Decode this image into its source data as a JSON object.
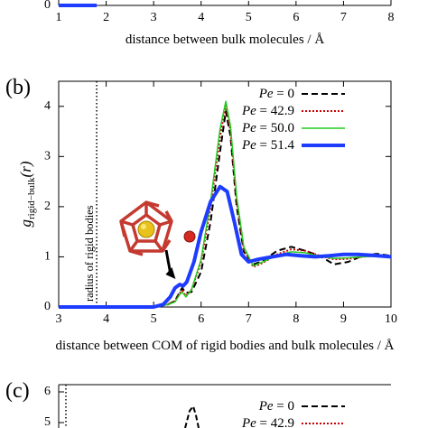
{
  "chart_data": [
    {
      "panel": "(a)",
      "type": "line",
      "xlabel": "distance between bulk molecules / Å",
      "xlim": [
        1,
        8
      ],
      "xticks": [
        "1",
        "2",
        "3",
        "4",
        "5",
        "6",
        "7",
        "8"
      ],
      "y_zero_label": "0",
      "series": [
        {
          "color": "#1e3cff",
          "x": [
            1.0,
            1.8
          ],
          "y": [
            0,
            0
          ]
        }
      ]
    },
    {
      "panel": "(b)",
      "type": "line",
      "xlabel": "distance between COM of rigid bodies and bulk molecules / Å",
      "ylabel_main": "g",
      "ylabel_sub": "rigid−bulk",
      "ylabel_arg": "(r)",
      "xlim": [
        3,
        10
      ],
      "ylim": [
        0,
        4.5
      ],
      "xticks": [
        "3",
        "4",
        "5",
        "6",
        "7",
        "8",
        "9",
        "10"
      ],
      "yticks": [
        "0",
        "1",
        "2",
        "3",
        "4"
      ],
      "vline": {
        "x": 3.8,
        "label": "radius of rigid bodies"
      },
      "legend_prefix": "Pe",
      "legend_position": "top-right",
      "series": [
        {
          "name": "= 0",
          "color": "#000000",
          "dash": "7,4",
          "width": 2,
          "x": [
            3,
            5.0,
            5.3,
            5.45,
            5.55,
            5.6,
            5.68,
            5.8,
            6.0,
            6.2,
            6.4,
            6.52,
            6.62,
            6.75,
            6.9,
            7.1,
            7.3,
            7.6,
            7.9,
            8.2,
            8.5,
            8.8,
            9.1,
            9.4,
            9.7,
            10
          ],
          "y": [
            0,
            0,
            0.05,
            0.12,
            0.3,
            0.38,
            0.28,
            0.3,
            0.7,
            1.7,
            3.1,
            3.9,
            3.4,
            2.0,
            1.1,
            0.85,
            0.92,
            1.12,
            1.2,
            1.12,
            1.02,
            0.85,
            0.9,
            1.02,
            1.06,
            1.02
          ]
        },
        {
          "name": "= 42.9",
          "color": "#cc0000",
          "dash": "2,2",
          "width": 2,
          "x": [
            3,
            5.0,
            5.3,
            5.45,
            5.55,
            5.6,
            5.68,
            5.8,
            6.0,
            6.2,
            6.4,
            6.52,
            6.62,
            6.75,
            6.9,
            7.1,
            7.3,
            7.6,
            7.9,
            8.2,
            8.5,
            8.8,
            9.1,
            9.4,
            9.7,
            10
          ],
          "y": [
            0,
            0,
            0.05,
            0.12,
            0.28,
            0.33,
            0.22,
            0.35,
            0.9,
            2.0,
            3.4,
            4.05,
            3.5,
            2.1,
            1.15,
            0.8,
            0.88,
            1.05,
            1.15,
            1.12,
            1.02,
            0.95,
            0.96,
            1.0,
            1.02,
            1.0
          ]
        },
        {
          "name": "= 50.0",
          "color": "#22cc22",
          "dash": "",
          "width": 1.5,
          "x": [
            3,
            5.0,
            5.3,
            5.45,
            5.55,
            5.6,
            5.68,
            5.8,
            6.0,
            6.2,
            6.4,
            6.52,
            6.62,
            6.75,
            6.9,
            7.1,
            7.3,
            7.6,
            7.9,
            8.2,
            8.5,
            8.8,
            9.1,
            9.4,
            9.7,
            10
          ],
          "y": [
            0,
            0,
            0.05,
            0.1,
            0.25,
            0.3,
            0.2,
            0.35,
            0.95,
            2.1,
            3.55,
            4.1,
            3.6,
            2.2,
            1.2,
            0.82,
            0.9,
            1.03,
            1.1,
            1.08,
            1.01,
            0.97,
            0.98,
            1.0,
            1.01,
            1.0
          ]
        },
        {
          "name": "= 51.4",
          "color": "#1e3cff",
          "dash": "",
          "width": 4,
          "x": [
            3,
            5.0,
            5.2,
            5.35,
            5.45,
            5.55,
            5.62,
            5.7,
            5.85,
            6.0,
            6.2,
            6.4,
            6.55,
            6.7,
            6.85,
            7.0,
            7.2,
            7.5,
            7.8,
            8.1,
            8.4,
            8.7,
            9.0,
            9.3,
            9.6,
            10
          ],
          "y": [
            0,
            0,
            0.05,
            0.2,
            0.38,
            0.45,
            0.42,
            0.5,
            0.9,
            1.5,
            2.1,
            2.4,
            2.3,
            1.7,
            1.05,
            0.9,
            0.95,
            1.0,
            1.05,
            1.02,
            1.0,
            1.02,
            1.05,
            1.05,
            1.03,
            1.0
          ]
        }
      ],
      "inset": {
        "type": "molecule illustration",
        "arrow_to": {
          "x": 5.5,
          "y": 0.45
        }
      }
    },
    {
      "panel": "(c)",
      "type": "line",
      "yticks_visible": [
        "5",
        "6"
      ],
      "legend_prefix": "Pe",
      "series": [
        {
          "name": "= 0",
          "color": "#000000",
          "dash": "7,4"
        },
        {
          "name": "= 42.9",
          "color": "#cc0000",
          "dash": "2,2"
        }
      ]
    }
  ],
  "panels": {
    "a": {
      "label": "(a)"
    },
    "b": {
      "label": "(b)"
    },
    "c": {
      "label": "(c)"
    }
  }
}
